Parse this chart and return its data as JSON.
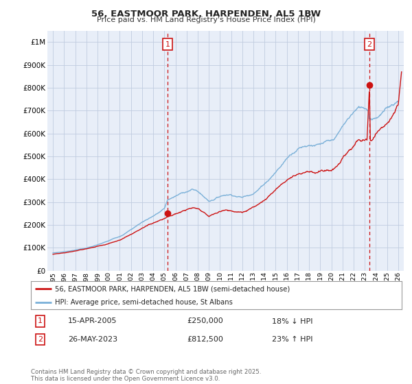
{
  "title": "56, EASTMOOR PARK, HARPENDEN, AL5 1BW",
  "subtitle": "Price paid vs. HM Land Registry's House Price Index (HPI)",
  "background_color": "#ffffff",
  "plot_background": "#e8eef8",
  "grid_color": "#c0cce0",
  "xlim": [
    1994.5,
    2026.5
  ],
  "ylim": [
    0,
    1050000
  ],
  "yticks": [
    0,
    100000,
    200000,
    300000,
    400000,
    500000,
    600000,
    700000,
    800000,
    900000,
    1000000
  ],
  "ytick_labels": [
    "£0",
    "£100K",
    "£200K",
    "£300K",
    "£400K",
    "£500K",
    "£600K",
    "£700K",
    "£800K",
    "£900K",
    "£1M"
  ],
  "xtick_years": [
    1995,
    1996,
    1997,
    1998,
    1999,
    2000,
    2001,
    2002,
    2003,
    2004,
    2005,
    2006,
    2007,
    2008,
    2009,
    2010,
    2011,
    2012,
    2013,
    2014,
    2015,
    2016,
    2017,
    2018,
    2019,
    2020,
    2021,
    2022,
    2023,
    2024,
    2025,
    2026
  ],
  "hpi_color": "#7ab0d8",
  "price_color": "#cc1111",
  "marker1_x": 2005.28,
  "marker1_y": 250000,
  "marker2_x": 2023.4,
  "marker2_y": 812500,
  "legend_label_price": "56, EASTMOOR PARK, HARPENDEN, AL5 1BW (semi-detached house)",
  "legend_label_hpi": "HPI: Average price, semi-detached house, St Albans",
  "sale1_date": "15-APR-2005",
  "sale1_price": "£250,000",
  "sale1_hpi": "18% ↓ HPI",
  "sale2_date": "26-MAY-2023",
  "sale2_price": "£812,500",
  "sale2_hpi": "23% ↑ HPI",
  "footer": "Contains HM Land Registry data © Crown copyright and database right 2025.\nThis data is licensed under the Open Government Licence v3.0."
}
